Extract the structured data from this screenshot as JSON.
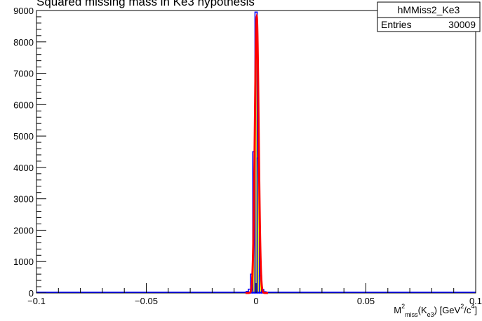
{
  "chart_data": {
    "type": "histogram",
    "title": "Squared missing mass in Ke3 hypothesis",
    "xlabel": "M²miss(Ke3) [GeV²/c⁴]",
    "xlabel_parts": {
      "base": "M",
      "sup1": "2",
      "sub1": "miss",
      "mid": "(K",
      "sub2": "e3",
      "unit_pre": ") [GeV",
      "sup2": "2",
      "unit_mid": "/c",
      "sup3": "4",
      "unit_post": "]"
    },
    "xlim": [
      -0.1,
      0.1
    ],
    "ylim": [
      0,
      9000
    ],
    "xticks": [
      -0.1,
      -0.05,
      0,
      0.05,
      0.1
    ],
    "xtick_labels": [
      "−0.1",
      "−0.05",
      "0",
      "0.05",
      "0.1"
    ],
    "yticks": [
      0,
      1000,
      2000,
      3000,
      4000,
      5000,
      6000,
      7000,
      8000,
      9000
    ],
    "ytick_labels": [
      "0",
      "1000",
      "2000",
      "3000",
      "4000",
      "5000",
      "6000",
      "7000",
      "8000",
      "9000"
    ],
    "stats": {
      "name": "hMMiss2_Ke3",
      "entries_label": "Entries",
      "entries_value": "30009"
    },
    "histogram": {
      "color": "#0000ff",
      "x": [
        -0.004,
        -0.003,
        -0.002,
        -0.001,
        0.0,
        0.001,
        0.002,
        0.003,
        0.004
      ],
      "y": [
        50,
        120,
        600,
        4500,
        8950,
        4300,
        550,
        110,
        40
      ]
    },
    "fit": {
      "color": "#ff0000",
      "fill_color": "#ffff00",
      "function": "gaussian",
      "amplitude": 8800,
      "mean": 0.0003,
      "sigma": 0.00085
    },
    "grid": false,
    "legend": "top-right"
  }
}
